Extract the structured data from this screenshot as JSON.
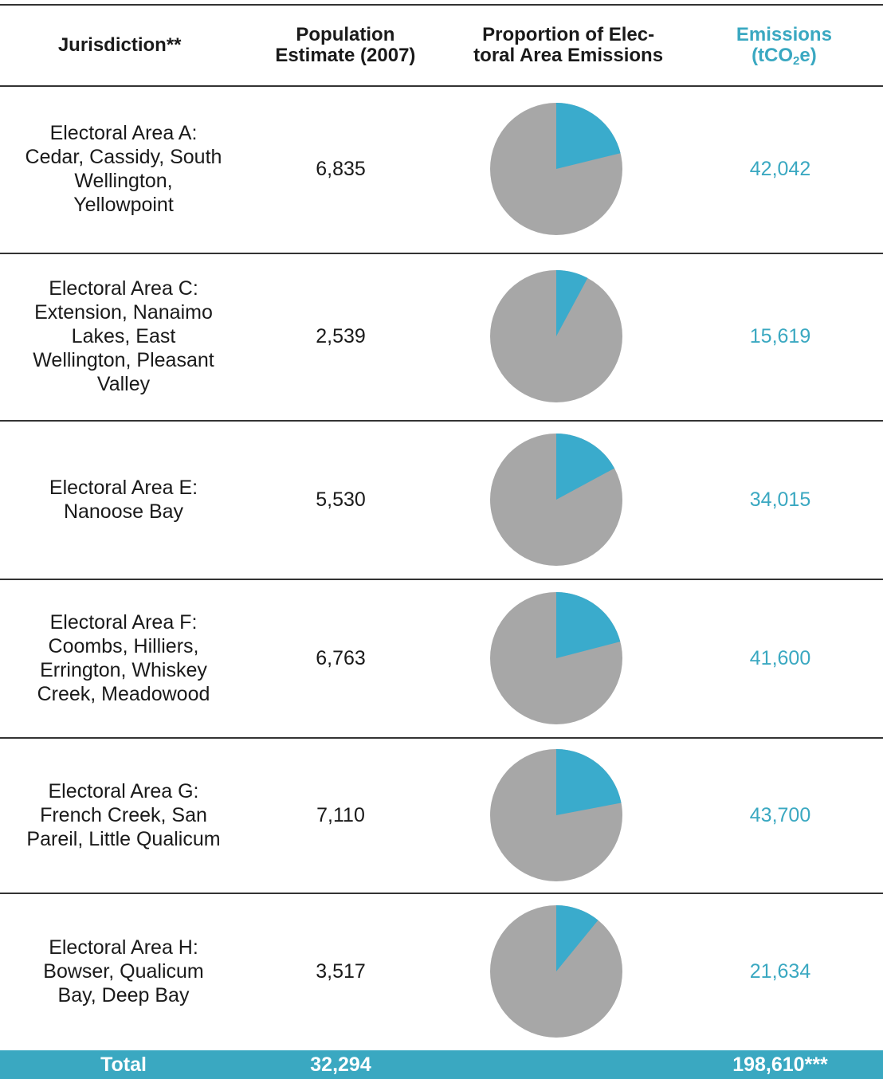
{
  "table": {
    "header": {
      "jurisdiction": "Jurisdiction**",
      "population": "Population Estimate (2007)",
      "proportion": "Proportion of Elec-toral Area Emissions",
      "emissions": {
        "main": "Emissions",
        "unit_pre": "(tCO",
        "unit_sub": "2",
        "unit_post": "e)"
      }
    },
    "rows": [
      {
        "jurisdiction": "Electoral Area A: Cedar, Cassidy, South Wellington, Yellowpoint",
        "population": "6,835",
        "emissions": "42,042"
      },
      {
        "jurisdiction": "Electoral Area C: Extension, Nanaimo Lakes, East Wellington, Pleasant Valley",
        "population": "2,539",
        "emissions": "15,619"
      },
      {
        "jurisdiction": "Electoral Area E: Nanoose Bay",
        "population": "5,530",
        "emissions": "34,015"
      },
      {
        "jurisdiction": "Electoral Area F: Coombs, Hilliers, Errington, Whiskey Creek, Meadowood",
        "population": "6,763",
        "emissions": "41,600"
      },
      {
        "jurisdiction": "Electoral Area G: French Creek, San Pareil, Little Qualicum",
        "population": "7,110",
        "emissions": "43,700"
      },
      {
        "jurisdiction": "Electoral Area H: Bowser, Qualicum Bay, Deep Bay",
        "population": "3,517",
        "emissions": "21,634"
      }
    ],
    "total": {
      "label": "Total",
      "population": "32,294",
      "emissions": "198,610***"
    },
    "colors": {
      "slice": "#3aabcc",
      "rest": "#a7a7a7",
      "accent": "#3aa8c1"
    }
  }
}
